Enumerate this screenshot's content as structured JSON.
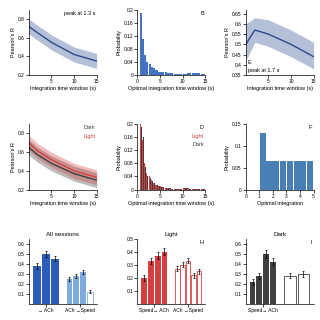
{
  "chart_data": [
    {
      "type": "line",
      "annotations": [
        "peak at 1.3 s"
      ],
      "xlabel": "Integration time window (s)",
      "ylabel": "Pearson's R",
      "x": [
        0,
        2,
        5,
        10,
        15
      ],
      "xlim": [
        0,
        15
      ],
      "xticks": [
        5,
        10,
        15
      ],
      "ylim": [
        0.2,
        0.9
      ],
      "yticks": [
        0.2,
        0.4,
        0.6,
        0.8
      ],
      "series": [
        {
          "color": "#2a4b8f",
          "values": [
            0.72,
            0.65,
            0.55,
            0.42,
            0.35
          ],
          "upper": [
            0.8,
            0.73,
            0.63,
            0.5,
            0.43
          ],
          "lower": [
            0.64,
            0.57,
            0.47,
            0.34,
            0.27
          ]
        }
      ]
    },
    {
      "type": "histogram",
      "annotations": [
        "B"
      ],
      "xlabel": "Optimal integration time window (s)",
      "ylabel": "Probability",
      "bins": [
        0,
        0.5,
        1,
        1.5,
        2,
        2.5,
        3,
        3.5,
        4,
        4.5,
        5,
        5.5,
        6,
        6.5,
        7,
        7.5,
        8,
        8.5,
        9,
        9.5,
        10,
        11,
        12,
        13,
        14,
        15
      ],
      "xlim": [
        0,
        15
      ],
      "xticks": [
        0,
        5,
        10,
        15
      ],
      "ylim": [
        0,
        0.2
      ],
      "yticks": [
        0,
        0.04,
        0.08,
        0.12,
        0.16,
        0.2
      ],
      "series": [
        {
          "color": "#4472c4",
          "values": [
            0,
            0.19,
            0.11,
            0.06,
            0.04,
            0.035,
            0.025,
            0.02,
            0.015,
            0.01,
            0.01,
            0.008,
            0.008,
            0.006,
            0.005,
            0.005,
            0.004,
            0.003,
            0.003,
            0.002,
            0.002,
            0.006,
            0.005,
            0.005,
            0.004
          ]
        }
      ]
    },
    {
      "type": "line",
      "annotations": [
        "E",
        "peak at 1.7 s"
      ],
      "xlabel": "Integration time window (s)",
      "ylabel": "Pearson's R",
      "x": [
        0,
        2,
        5,
        10,
        15
      ],
      "xlim": [
        0,
        15
      ],
      "xticks": [
        5,
        10,
        15
      ],
      "ylim": [
        0.35,
        0.67
      ],
      "yticks": [
        0.35,
        0.4,
        0.45,
        0.5,
        0.55,
        0.6,
        0.65
      ],
      "series": [
        {
          "color": "#2a4b8f",
          "values": [
            0.5,
            0.57,
            0.55,
            0.5,
            0.44
          ],
          "upper": [
            0.6,
            0.63,
            0.62,
            0.57,
            0.51
          ],
          "lower": [
            0.42,
            0.51,
            0.49,
            0.44,
            0.38
          ]
        }
      ]
    },
    {
      "type": "line",
      "xlabel": "Integration time window (s)",
      "ylabel": "Pearson's R",
      "x": [
        0,
        2,
        5,
        10,
        15
      ],
      "xlim": [
        0,
        15
      ],
      "xticks": [
        5,
        10,
        15
      ],
      "ylim": [
        0.2,
        0.9
      ],
      "yticks": [
        0.2,
        0.4,
        0.6,
        0.8
      ],
      "series": [
        {
          "name": "Dark",
          "color": "#404040",
          "values": [
            0.65,
            0.57,
            0.48,
            0.37,
            0.3
          ],
          "upper": [
            0.73,
            0.65,
            0.56,
            0.45,
            0.38
          ],
          "lower": [
            0.57,
            0.49,
            0.4,
            0.29,
            0.22
          ]
        },
        {
          "name": "Light",
          "color": "#d44040",
          "values": [
            0.7,
            0.61,
            0.52,
            0.4,
            0.33
          ],
          "upper": [
            0.78,
            0.69,
            0.6,
            0.48,
            0.41
          ],
          "lower": [
            0.62,
            0.53,
            0.44,
            0.32,
            0.25
          ]
        }
      ]
    },
    {
      "type": "histogram",
      "annotations": [
        "D"
      ],
      "xlabel": "Optimal integration time window (s)",
      "ylabel": "Probability",
      "bins": [
        0,
        0.5,
        1,
        1.5,
        2,
        2.5,
        3,
        3.5,
        4,
        4.5,
        5,
        5.5,
        6,
        6.5,
        7,
        7.5,
        8,
        8.5,
        9,
        10,
        11,
        12,
        13,
        14,
        15
      ],
      "xlim": [
        0,
        15
      ],
      "xticks": [
        0,
        5,
        10,
        15
      ],
      "ylim": [
        0,
        0.2
      ],
      "yticks": [
        0,
        0.04,
        0.08,
        0.12,
        0.16,
        0.2
      ],
      "series": [
        {
          "name": "Light",
          "color": "#d44040",
          "values": [
            0,
            0.2,
            0.15,
            0.08,
            0.05,
            0.04,
            0.03,
            0.02,
            0.015,
            0.01,
            0.01,
            0.008,
            0.006,
            0.005,
            0.004,
            0.003,
            0.003,
            0.002,
            0.002,
            0.005,
            0.004,
            0.003,
            0.003,
            0.002
          ]
        },
        {
          "name": "Dark",
          "color": "#404040",
          "values": [
            0,
            0.19,
            0.16,
            0.07,
            0.04,
            0.035,
            0.025,
            0.02,
            0.015,
            0.01,
            0.008,
            0.008,
            0.006,
            0.005,
            0.004,
            0.003,
            0.003,
            0.002,
            0.002,
            0.004,
            0.003,
            0.003,
            0.002,
            0.002
          ]
        }
      ]
    },
    {
      "type": "histogram",
      "annotations": [
        "F"
      ],
      "xlabel": "Optimal integration",
      "ylabel": "Probability",
      "bins": [
        0,
        0.5,
        1,
        1.5,
        2,
        2.5,
        3,
        3.5,
        4,
        4.5,
        5
      ],
      "xlim": [
        0,
        5
      ],
      "xticks": [
        0,
        1,
        2,
        3,
        4,
        5
      ],
      "ylim": [
        0,
        0.15
      ],
      "yticks": [
        0,
        0.05,
        0.1,
        0.15
      ],
      "series": [
        {
          "color": "#4a7fb5",
          "values": [
            0,
            0.0,
            0.13,
            0.065,
            0.065,
            0.065,
            0.065,
            0.065,
            0.065,
            0.065
          ]
        }
      ]
    },
    {
      "type": "bar",
      "title": "All sessions",
      "categories": [
        "→ ACh",
        "ACh →Speed"
      ],
      "ylim": [
        0,
        0.65
      ],
      "yticks": [
        0.1,
        0.2,
        0.3,
        0.4,
        0.5,
        0.6
      ],
      "groups": [
        [
          {
            "type": "bar",
            "color": "#2a5cb8",
            "values": [
              0.38,
              0.5,
              0.45
            ],
            "errors": [
              0.03,
              0.03,
              0.025
            ]
          }
        ],
        [
          {
            "type": "bar",
            "color": "#7faadd",
            "values": [
              0.25,
              0.28,
              0.32
            ],
            "errors": [
              0.02,
              0.02,
              0.02
            ]
          },
          {
            "type": "open_bar",
            "color": "#7faadd",
            "values": [
              0.12
            ],
            "errors": [
              0.015
            ]
          }
        ]
      ]
    },
    {
      "type": "bar",
      "title": "Light",
      "annotations": [
        "H"
      ],
      "categories": [
        "Speed→ ACh",
        "ACh →Speed"
      ],
      "ylim": [
        0,
        0.5
      ],
      "yticks": [
        0.1,
        0.2,
        0.3,
        0.4,
        0.5
      ],
      "groups": [
        [
          {
            "type": "bar",
            "color": "#d44040",
            "values": [
              0.2,
              0.33,
              0.37,
              0.4
            ],
            "errors": [
              0.025,
              0.025,
              0.025,
              0.025
            ]
          }
        ],
        [
          {
            "type": "open_bar",
            "color": "#d44040",
            "values": [
              0.27,
              0.3,
              0.33
            ],
            "errors": [
              0.02,
              0.02,
              0.02
            ]
          },
          {
            "type": "open_bar",
            "color": "#d44040",
            "values": [
              0.22,
              0.25
            ],
            "errors": [
              0.02,
              0.02
            ]
          }
        ]
      ]
    },
    {
      "type": "bar",
      "title": "Dark",
      "annotations": [
        "I"
      ],
      "categories": [
        "Speed→ ACh",
        null
      ],
      "ylim": [
        0,
        0.65
      ],
      "yticks": [
        0.1,
        0.2,
        0.3,
        0.4,
        0.5,
        0.6
      ],
      "groups": [
        [
          {
            "type": "bar",
            "color": "#404040",
            "values": [
              0.22,
              0.28,
              0.5,
              0.42
            ],
            "errors": [
              0.03,
              0.03,
              0.04,
              0.035
            ]
          }
        ],
        [
          {
            "type": "open_bar",
            "color": "#404040",
            "values": [
              0.28,
              0.3
            ],
            "errors": [
              0.025,
              0.03
            ]
          }
        ]
      ]
    }
  ]
}
